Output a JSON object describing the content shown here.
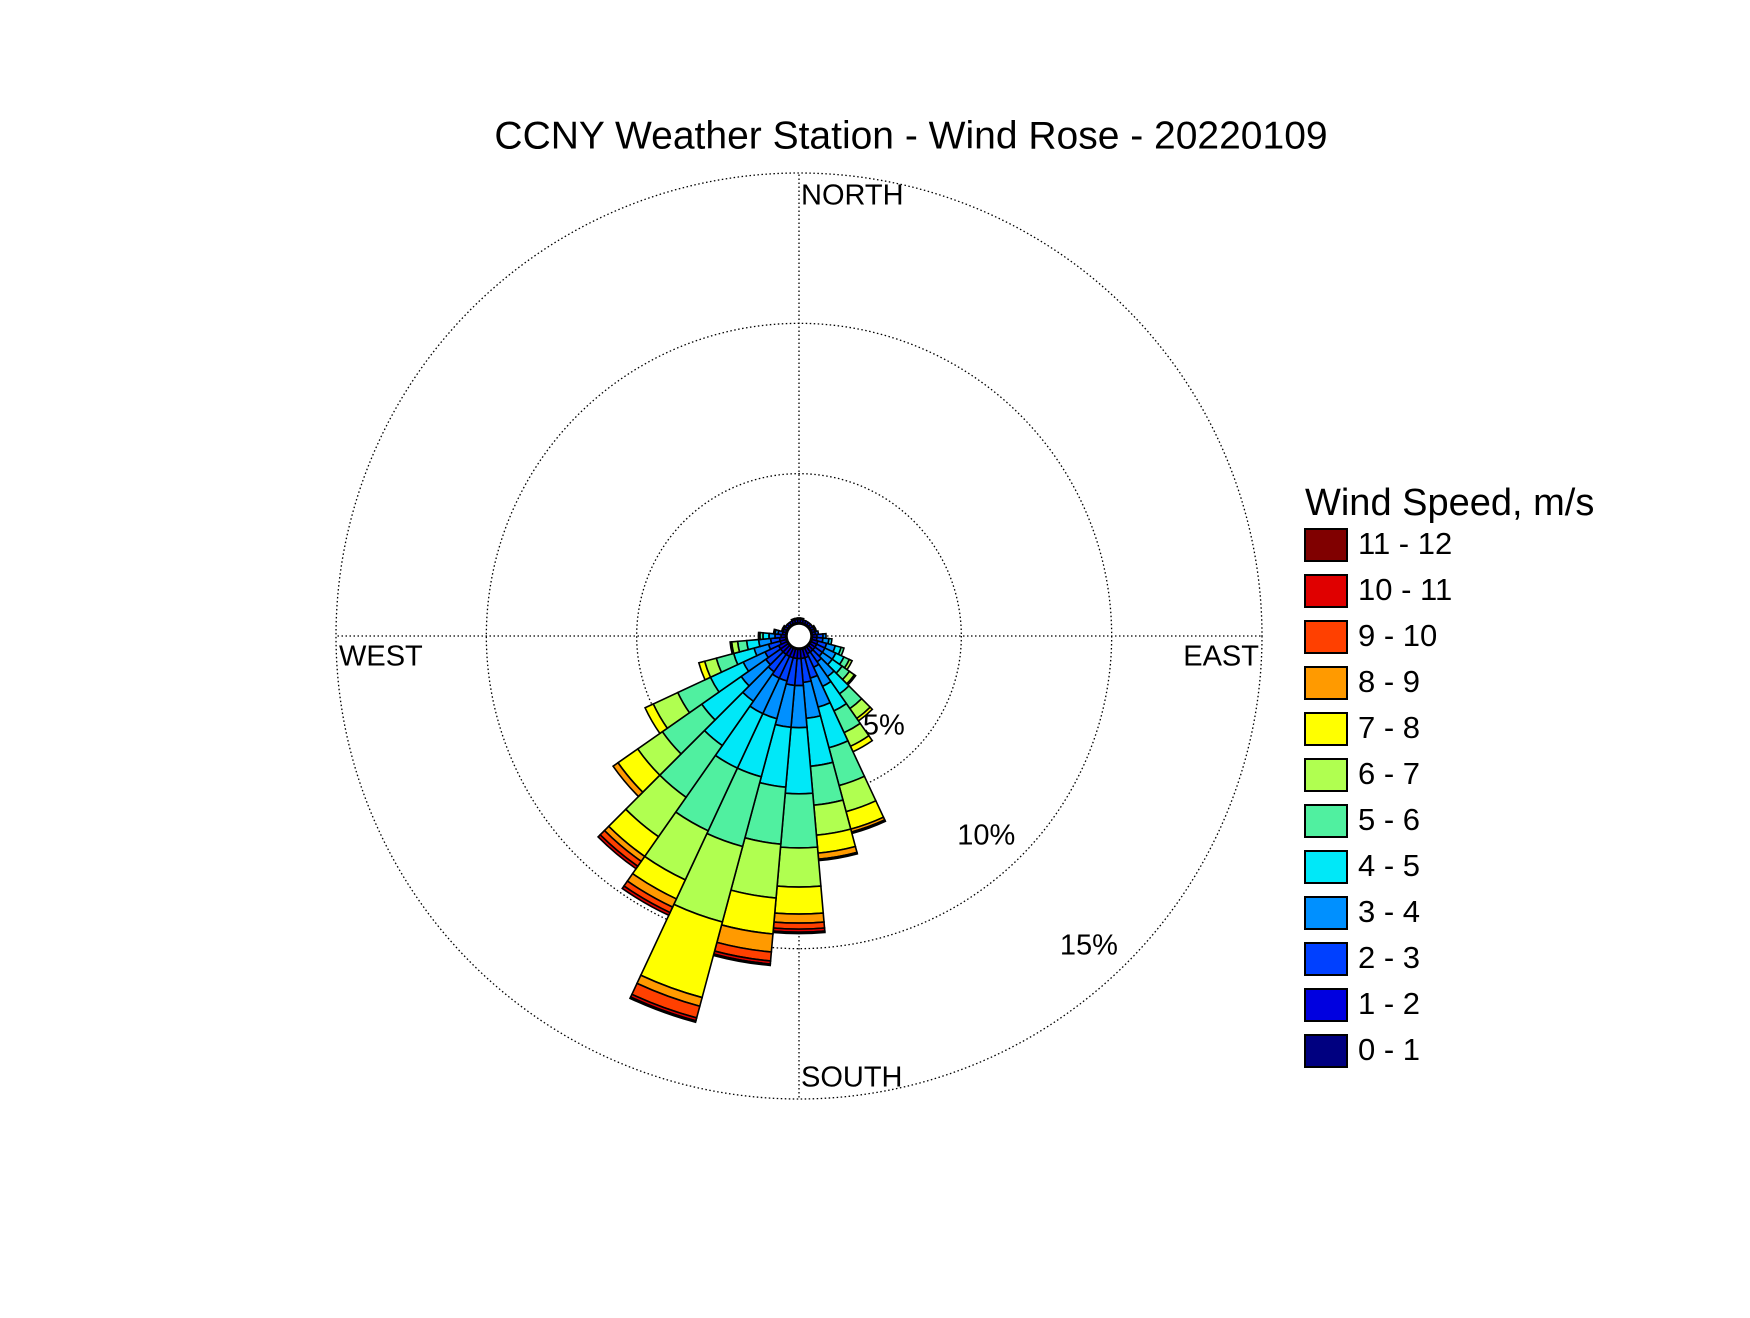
{
  "chart_data": {
    "type": "windrose",
    "title": "CCNY Weather Station - Wind Rose - 20220109",
    "legend_title": "Wind Speed, m/s",
    "x": [
      0,
      10,
      20,
      30,
      40,
      50,
      60,
      70,
      80,
      90,
      100,
      110,
      120,
      130,
      140,
      150,
      160,
      170,
      180,
      190,
      200,
      210,
      220,
      230,
      240,
      250,
      260,
      270,
      280,
      290,
      300,
      310,
      320,
      330,
      340,
      350
    ],
    "direction_labels": [
      {
        "value": 0,
        "label": "NORTH"
      },
      {
        "value": 90,
        "label": "EAST"
      },
      {
        "value": 180,
        "label": "SOUTH"
      },
      {
        "value": 270,
        "label": "WEST"
      }
    ],
    "rlim": [
      0,
      15
    ],
    "rticks": [
      {
        "value": 5,
        "label": "5%"
      },
      {
        "value": 10,
        "label": "10%"
      },
      {
        "value": 15,
        "label": "15%"
      }
    ],
    "grid": true,
    "series": [
      {
        "name": "0 - 1",
        "color": "#000080",
        "values": [
          0.05,
          0.05,
          0.05,
          0.05,
          0.05,
          0.05,
          0.05,
          0.05,
          0.05,
          0.05,
          0.05,
          0.05,
          0.05,
          0.05,
          0.05,
          0.05,
          0.05,
          0.05,
          0.05,
          0.05,
          0.05,
          0.05,
          0.05,
          0.05,
          0.05,
          0.05,
          0.05,
          0.05,
          0.05,
          0.05,
          0.05,
          0.05,
          0.05,
          0.05,
          0.05,
          0.05
        ]
      },
      {
        "name": "1 - 2",
        "color": "#0000e0",
        "values": [
          0.1,
          0.1,
          0.1,
          0.1,
          0.1,
          0.1,
          0.1,
          0.1,
          0.1,
          0.15,
          0.15,
          0.2,
          0.2,
          0.2,
          0.2,
          0.2,
          0.3,
          0.3,
          0.3,
          0.3,
          0.3,
          0.3,
          0.3,
          0.3,
          0.3,
          0.2,
          0.2,
          0.15,
          0.1,
          0.1,
          0.1,
          0.1,
          0.1,
          0.1,
          0.1,
          0.1
        ]
      },
      {
        "name": "2 - 3",
        "color": "#0040ff",
        "values": [
          0.05,
          0.05,
          0,
          0,
          0,
          0,
          0.05,
          0.05,
          0.1,
          0.2,
          0.2,
          0.3,
          0.3,
          0.3,
          0.4,
          0.5,
          0.7,
          0.8,
          0.9,
          0.9,
          0.8,
          0.8,
          0.7,
          0.6,
          0.5,
          0.4,
          0.3,
          0.2,
          0.15,
          0.05,
          0.05,
          0,
          0,
          0,
          0.05,
          0.05
        ]
      },
      {
        "name": "3 - 4",
        "color": "#0090ff",
        "values": [
          0,
          0,
          0,
          0,
          0,
          0,
          0,
          0,
          0,
          0.1,
          0.2,
          0.3,
          0.4,
          0.4,
          0.6,
          0.7,
          1,
          1.2,
          1.4,
          1.4,
          1.3,
          1.3,
          1.2,
          1,
          0.8,
          0.5,
          0.4,
          0.2,
          0.1,
          0,
          0,
          0,
          0,
          0,
          0,
          0
        ]
      },
      {
        "name": "4 - 5",
        "color": "#00e8f8",
        "values": [
          0,
          0,
          0,
          0,
          0,
          0,
          0,
          0,
          0,
          0,
          0.1,
          0.2,
          0.3,
          0.4,
          0.7,
          0.9,
          1.4,
          1.6,
          2.2,
          2,
          2,
          2,
          1.8,
          1.6,
          1.2,
          0.7,
          0.4,
          0.2,
          0.05,
          0,
          0,
          0,
          0,
          0,
          0,
          0
        ]
      },
      {
        "name": "5 - 6",
        "color": "#50f0a0",
        "values": [
          0,
          0,
          0,
          0,
          0,
          0,
          0,
          0,
          0,
          0,
          0,
          0.1,
          0.2,
          0.3,
          0.6,
          0.8,
          1.3,
          1.3,
          1.8,
          1.9,
          2.4,
          2.3,
          2.1,
          1.6,
          1.2,
          0.6,
          0.3,
          0.1,
          0,
          0,
          0,
          0,
          0,
          0,
          0,
          0
        ]
      },
      {
        "name": "6 - 7",
        "color": "#b0ff50",
        "values": [
          0,
          0,
          0,
          0,
          0,
          0,
          0,
          0,
          0,
          0,
          0,
          0,
          0.1,
          0.2,
          0.4,
          0.5,
          0.9,
          1,
          1.3,
          1.8,
          2.6,
          1.8,
          1.6,
          1,
          0.9,
          0.4,
          0.2,
          0.05,
          0,
          0,
          0,
          0,
          0,
          0,
          0,
          0
        ]
      },
      {
        "name": "7 - 8",
        "color": "#ffff00",
        "values": [
          0,
          0,
          0,
          0,
          0,
          0,
          0,
          0,
          0,
          0,
          0,
          0,
          0,
          0.05,
          0.1,
          0.2,
          0.6,
          0.6,
          0.9,
          1.2,
          2.6,
          0.7,
          0.8,
          0.8,
          0.3,
          0.2,
          0.05,
          0,
          0,
          0,
          0,
          0,
          0,
          0,
          0,
          0
        ]
      },
      {
        "name": "8 - 9",
        "color": "#ff9a00",
        "values": [
          0,
          0,
          0,
          0,
          0,
          0,
          0,
          0,
          0,
          0,
          0,
          0,
          0,
          0,
          0,
          0,
          0.1,
          0.2,
          0.3,
          0.6,
          0.3,
          0.3,
          0.2,
          0.2,
          0,
          0,
          0,
          0,
          0,
          0,
          0,
          0,
          0,
          0,
          0,
          0
        ]
      },
      {
        "name": "9 - 10",
        "color": "#ff4000",
        "values": [
          0,
          0,
          0,
          0,
          0,
          0,
          0,
          0,
          0,
          0,
          0,
          0,
          0,
          0,
          0,
          0,
          0.05,
          0.05,
          0.2,
          0.3,
          0.4,
          0.2,
          0.2,
          0,
          0,
          0,
          0,
          0,
          0,
          0,
          0,
          0,
          0,
          0,
          0,
          0
        ]
      },
      {
        "name": "10 - 11",
        "color": "#e00000",
        "values": [
          0,
          0,
          0,
          0,
          0,
          0,
          0,
          0,
          0,
          0,
          0,
          0,
          0,
          0,
          0,
          0,
          0,
          0,
          0.1,
          0.1,
          0.1,
          0.1,
          0.1,
          0,
          0,
          0,
          0,
          0,
          0,
          0,
          0,
          0,
          0,
          0,
          0,
          0
        ]
      },
      {
        "name": "11 - 12",
        "color": "#800000",
        "values": [
          0,
          0,
          0,
          0,
          0,
          0,
          0,
          0,
          0,
          0,
          0,
          0,
          0,
          0,
          0,
          0,
          0,
          0,
          0.05,
          0.05,
          0.05,
          0,
          0,
          0,
          0,
          0,
          0,
          0,
          0,
          0,
          0,
          0,
          0,
          0,
          0,
          0
        ]
      }
    ]
  }
}
